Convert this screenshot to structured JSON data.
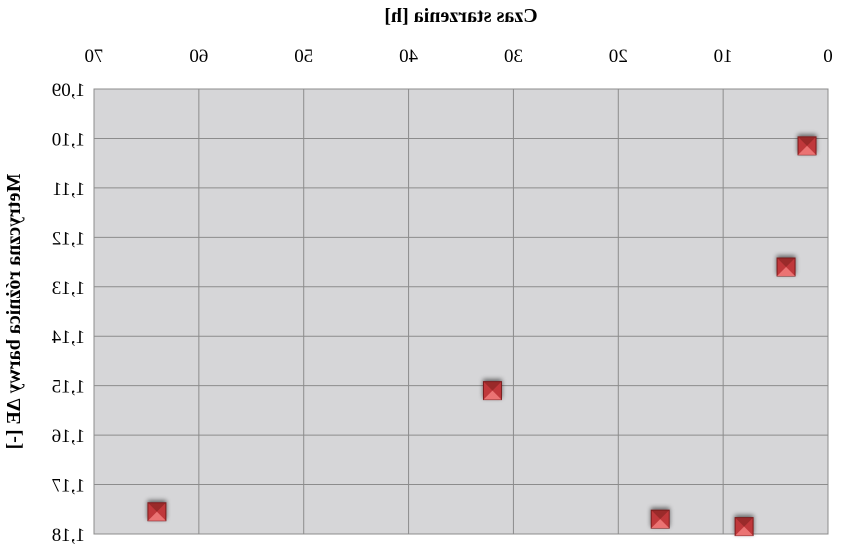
{
  "chart_data": {
    "type": "scatter",
    "title": "",
    "xlabel": "Czas starzenia [h]",
    "ylabel": "Metryczna różnica barwy ΔE [-]",
    "x_ticks": [
      "0",
      "10",
      "20",
      "30",
      "40",
      "50",
      "60",
      "70"
    ],
    "y_ticks": [
      "1,09",
      "1,10",
      "1,11",
      "1,12",
      "1,13",
      "1,14",
      "1,15",
      "1,16",
      "1,17",
      "1,18"
    ],
    "xlim": [
      0,
      70
    ],
    "ylim": [
      1.09,
      1.18
    ],
    "y_reversed": true,
    "x_axis_position": "top",
    "mirrored": true,
    "grid": true,
    "legend": "none",
    "series": [
      {
        "x": [
          2,
          4,
          8,
          16,
          32,
          64
        ],
        "y": [
          1.1015,
          1.126,
          1.1785,
          1.177,
          1.151,
          1.1755
        ]
      }
    ],
    "colors": {
      "plot_background": "#d6d6d8",
      "grid": "#8c8c8c",
      "marker_face": "#c0393b",
      "marker_light": "#f07a7a",
      "marker_dark": "#7a1d1f"
    },
    "marker": "square"
  }
}
